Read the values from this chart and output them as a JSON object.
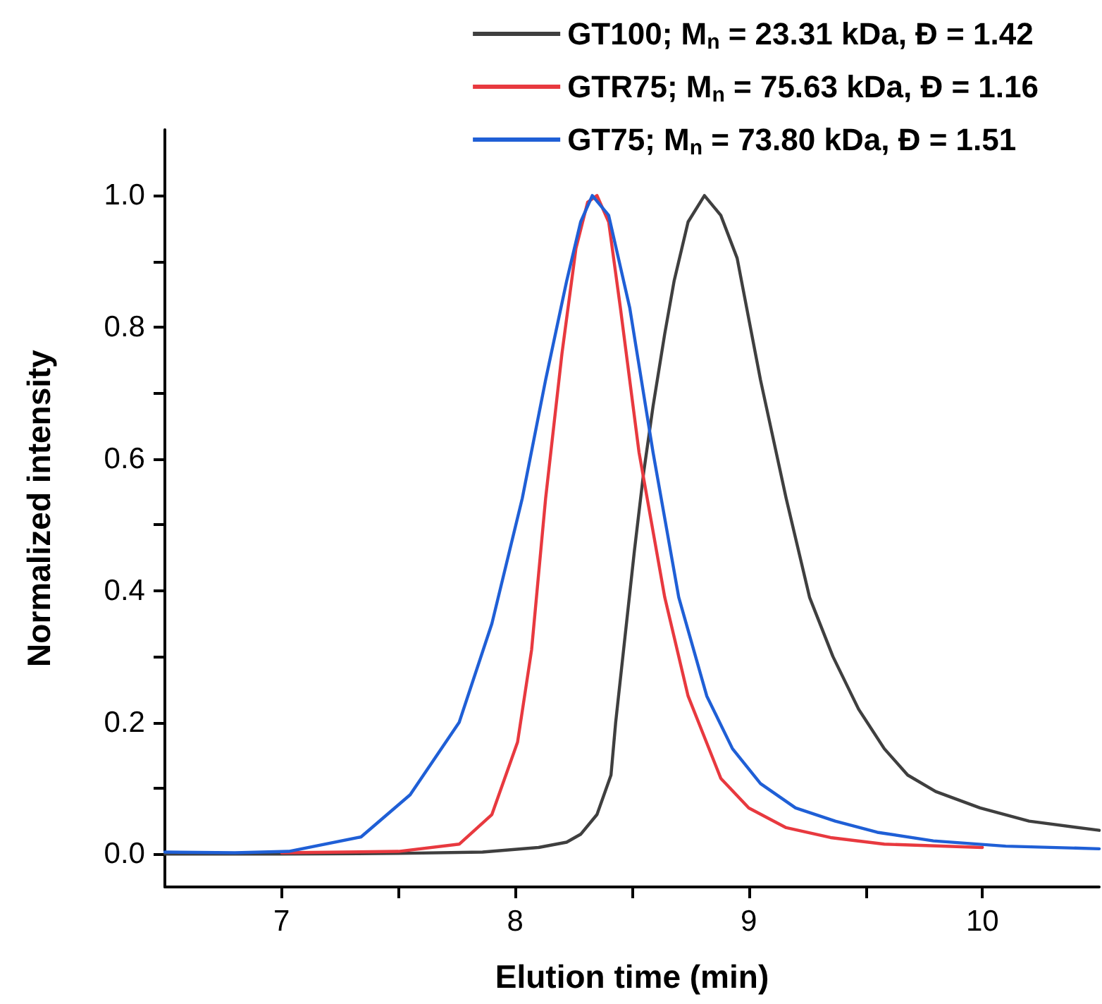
{
  "chart_data": {
    "type": "line",
    "xlabel": "Elution time (min)",
    "ylabel": "Normalized intensity",
    "xlim": [
      6.5,
      10.5
    ],
    "xticks": [
      7,
      {
        "value": 7.5,
        "label": null
      },
      8,
      {
        "value": 8.5,
        "label": null
      },
      9,
      {
        "value": 9.5,
        "label": null
      },
      10
    ],
    "ylim": [
      -0.05,
      1.1
    ],
    "yticks": [
      {
        "value": 0,
        "label": "0.0"
      },
      {
        "value": 0.1,
        "label": null
      },
      0.2,
      {
        "value": 0.3,
        "label": null
      },
      0.4,
      {
        "value": 0.5,
        "label": null
      },
      0.6,
      {
        "value": 0.7,
        "label": null
      },
      0.8,
      {
        "value": 0.9,
        "label": null
      },
      {
        "value": 1,
        "label": "1.0"
      }
    ],
    "grid": false,
    "legend": "top right",
    "marker": "none",
    "line_style": "solid",
    "series": [
      {
        "name": "GT100; M$_{n}$ = 23.31 kDa, Đ = 1.42",
        "color": "#3f3f3f",
        "x": [
          6.5,
          7.0,
          7.5,
          7.86,
          8.1,
          8.22,
          8.28,
          8.35,
          8.41,
          8.43,
          8.47,
          8.51,
          8.55,
          8.59,
          8.64,
          8.68,
          8.74,
          8.81,
          8.88,
          8.95,
          9.05,
          9.16,
          9.26,
          9.36,
          9.47,
          9.58,
          9.68,
          9.8,
          9.99,
          10.2,
          10.5
        ],
        "values": [
          0.0,
          0.0,
          0.001,
          0.003,
          0.01,
          0.018,
          0.03,
          0.06,
          0.12,
          0.2,
          0.33,
          0.46,
          0.58,
          0.68,
          0.79,
          0.87,
          0.96,
          1.0,
          0.97,
          0.905,
          0.72,
          0.54,
          0.39,
          0.3,
          0.22,
          0.16,
          0.12,
          0.095,
          0.07,
          0.05,
          0.036
        ]
      },
      {
        "name": "GTR75; M$_{n}$ = 75.63 kDa, Đ = 1.16",
        "color": "#e8393f",
        "x": [
          7.0,
          7.5,
          7.76,
          7.9,
          8.01,
          8.07,
          8.13,
          8.2,
          8.26,
          8.31,
          8.35,
          8.4,
          8.45,
          8.53,
          8.64,
          8.74,
          8.88,
          9.0,
          9.16,
          9.35,
          9.58,
          10.0
        ],
        "values": [
          0.002,
          0.004,
          0.015,
          0.06,
          0.17,
          0.31,
          0.54,
          0.76,
          0.92,
          0.99,
          1.0,
          0.96,
          0.83,
          0.61,
          0.39,
          0.24,
          0.115,
          0.07,
          0.04,
          0.025,
          0.015,
          0.01
        ]
      },
      {
        "name": "GT75; M$_{n}$ = 73.80 kDa, Đ = 1.51",
        "color": "#1f5fd6",
        "x": [
          6.5,
          6.8,
          7.03,
          7.34,
          7.55,
          7.76,
          7.9,
          8.03,
          8.13,
          8.22,
          8.28,
          8.33,
          8.4,
          8.49,
          8.59,
          8.7,
          8.82,
          8.93,
          9.05,
          9.2,
          9.37,
          9.55,
          9.79,
          10.1,
          10.5
        ],
        "values": [
          0.003,
          0.002,
          0.004,
          0.026,
          0.09,
          0.2,
          0.35,
          0.54,
          0.72,
          0.87,
          0.96,
          1.0,
          0.97,
          0.83,
          0.61,
          0.39,
          0.24,
          0.16,
          0.107,
          0.07,
          0.05,
          0.033,
          0.02,
          0.012,
          0.008
        ]
      }
    ]
  }
}
